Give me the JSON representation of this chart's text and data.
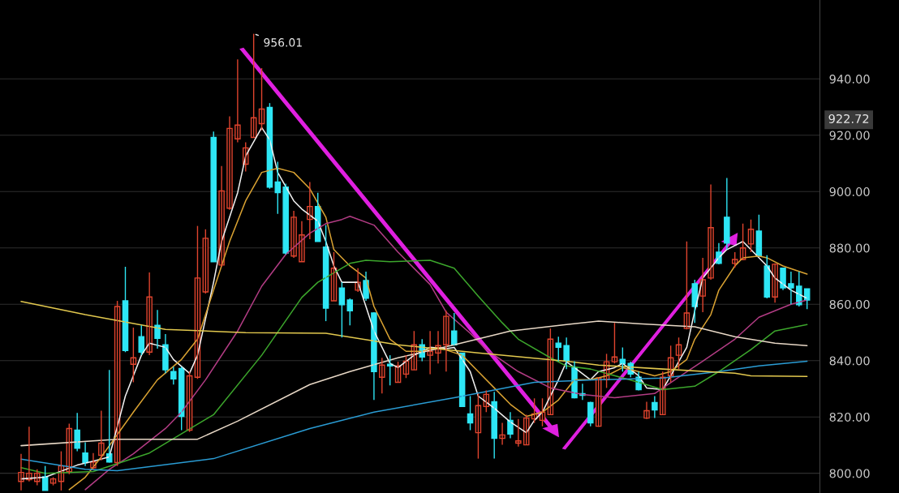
{
  "chart_data": {
    "type": "candlestick",
    "categories": [
      null,
      null,
      null,
      null,
      null,
      null,
      null,
      null,
      null,
      null,
      null,
      null,
      null,
      null,
      null,
      null,
      null,
      null,
      null,
      null,
      null,
      null,
      null,
      null,
      null,
      null,
      null,
      null,
      null,
      null,
      null,
      null,
      null,
      null,
      null,
      null,
      null,
      null,
      null,
      null,
      null,
      null,
      null,
      null,
      null,
      null,
      null,
      null,
      null,
      null,
      null,
      null,
      null,
      null,
      null,
      null,
      null,
      null,
      null,
      null,
      null,
      null,
      null,
      null,
      null,
      null,
      null,
      null,
      null,
      null,
      null,
      null,
      null,
      null,
      null,
      null,
      null,
      null,
      null,
      null,
      null,
      null,
      null,
      null,
      null,
      null,
      null,
      null,
      null,
      null,
      null,
      null,
      null,
      null,
      null,
      null,
      null,
      null,
      null
    ],
    "ohlc": [
      [
        797.1,
        806.9,
        793.9,
        800.3
      ],
      [
        797.7,
        816.5,
        797.1,
        800.0
      ],
      [
        797.1,
        801.4,
        795.7,
        800.0
      ],
      [
        798.8,
        802.6,
        793.9,
        793.9
      ],
      [
        796.5,
        798.6,
        795.7,
        798.0
      ],
      [
        797.1,
        807.8,
        793.9,
        802.6
      ],
      [
        800.6,
        817.6,
        799.7,
        815.9
      ],
      [
        815.3,
        821.4,
        807.8,
        808.9
      ],
      [
        807.2,
        811.0,
        802.6,
        803.8
      ],
      [
        802.0,
        807.2,
        801.4,
        804.0
      ],
      [
        806.4,
        822.2,
        804.6,
        810.7
      ],
      [
        806.9,
        836.7,
        803.8,
        804.0
      ],
      [
        803.8,
        861.2,
        802.6,
        859.2
      ],
      [
        861.2,
        873.3,
        843.0,
        843.6
      ],
      [
        838.7,
        851.7,
        832.3,
        841.0
      ],
      [
        848.5,
        852.5,
        841.9,
        843.0
      ],
      [
        843.0,
        871.3,
        841.9,
        862.6
      ],
      [
        852.5,
        858.0,
        844.2,
        847.9
      ],
      [
        845.6,
        849.4,
        835.5,
        836.7
      ],
      [
        836.1,
        837.8,
        831.5,
        833.5
      ],
      [
        837.2,
        837.8,
        815.3,
        820.2
      ],
      [
        815.3,
        836.1,
        814.7,
        834.6
      ],
      [
        834.1,
        887.8,
        833.5,
        869.3
      ],
      [
        864.4,
        886.6,
        863.8,
        883.4
      ],
      [
        919.2,
        921.3,
        875.1,
        875.1
      ],
      [
        873.9,
        909.1,
        873.3,
        900.2
      ],
      [
        894.1,
        926.7,
        893.5,
        922.4
      ],
      [
        918.7,
        946.9,
        917.5,
        923.6
      ],
      [
        909.7,
        917.5,
        907.1,
        915.5
      ],
      [
        919.2,
        956.01,
        919.2,
        926.2
      ],
      [
        924.1,
        943.8,
        921.8,
        929.3
      ],
      [
        929.9,
        931.4,
        901.0,
        901.6
      ],
      [
        903.4,
        910.6,
        892.1,
        899.6
      ],
      [
        901.6,
        902.8,
        877.7,
        878.2
      ],
      [
        877.1,
        893.2,
        876.5,
        890.9
      ],
      [
        875.1,
        889.5,
        875.1,
        884.6
      ],
      [
        890.1,
        903.4,
        883.1,
        894.7
      ],
      [
        894.7,
        899.6,
        882.3,
        882.3
      ],
      [
        880.3,
        888.1,
        854.0,
        858.6
      ],
      [
        861.2,
        878.5,
        861.2,
        872.8
      ],
      [
        865.8,
        867.8,
        848.2,
        859.8
      ],
      [
        861.5,
        862.1,
        852.5,
        857.7
      ],
      [
        865.0,
        872.8,
        864.4,
        867.8
      ],
      [
        868.4,
        871.6,
        861.2,
        862.1
      ],
      [
        856.9,
        857.2,
        826.0,
        836.1
      ],
      [
        834.1,
        841.0,
        828.3,
        838.4
      ],
      [
        838.7,
        841.9,
        831.2,
        838.1
      ],
      [
        832.3,
        839.6,
        832.3,
        838.1
      ],
      [
        835.2,
        841.9,
        833.8,
        839.8
      ],
      [
        836.7,
        850.5,
        836.7,
        845.6
      ],
      [
        845.6,
        847.6,
        839.8,
        841.3
      ],
      [
        841.9,
        850.5,
        835.2,
        843.3
      ],
      [
        842.7,
        850.5,
        839.0,
        845.3
      ],
      [
        845.6,
        857.7,
        836.1,
        855.7
      ],
      [
        850.5,
        856.9,
        845.3,
        845.6
      ],
      [
        842.7,
        842.7,
        823.7,
        823.7
      ],
      [
        821.1,
        827.4,
        815.3,
        817.9
      ],
      [
        814.4,
        828.3,
        805.2,
        824.0
      ],
      [
        823.7,
        829.4,
        821.7,
        828.0
      ],
      [
        825.4,
        828.9,
        805.2,
        812.4
      ],
      [
        812.4,
        817.9,
        810.1,
        813.6
      ],
      [
        818.8,
        821.7,
        812.4,
        813.9
      ],
      [
        810.7,
        819.3,
        809.5,
        811.5
      ],
      [
        810.1,
        820.8,
        810.1,
        819.6
      ],
      [
        819.3,
        826.6,
        817.9,
        821.1
      ],
      [
        818.8,
        826.6,
        816.7,
        821.7
      ],
      [
        820.8,
        851.4,
        820.8,
        847.6
      ],
      [
        846.2,
        848.5,
        839.8,
        844.7
      ],
      [
        845.3,
        848.2,
        837.0,
        839.8
      ],
      [
        837.5,
        839.8,
        826.6,
        826.8
      ],
      [
        828.3,
        831.8,
        826.0,
        827.7
      ],
      [
        825.1,
        825.4,
        816.7,
        817.9
      ],
      [
        816.7,
        834.1,
        816.5,
        833.8
      ],
      [
        833.2,
        842.4,
        830.3,
        839.6
      ],
      [
        839.6,
        853.4,
        839.0,
        841.3
      ],
      [
        840.4,
        844.7,
        836.1,
        839.0
      ],
      [
        839.0,
        839.6,
        834.1,
        835.2
      ],
      [
        834.1,
        836.1,
        829.4,
        829.7
      ],
      [
        819.6,
        825.4,
        819.3,
        822.2
      ],
      [
        825.1,
        827.4,
        819.6,
        822.5
      ],
      [
        820.8,
        836.1,
        820.8,
        834.1
      ],
      [
        834.6,
        845.3,
        832.3,
        841.0
      ],
      [
        841.9,
        848.2,
        837.0,
        845.6
      ],
      [
        851.4,
        882.3,
        851.1,
        856.9
      ],
      [
        867.3,
        868.7,
        853.4,
        859.2
      ],
      [
        862.9,
        876.5,
        857.2,
        868.7
      ],
      [
        869.3,
        902.5,
        868.7,
        887.2
      ],
      [
        878.5,
        881.7,
        874.2,
        874.5
      ],
      [
        890.9,
        904.8,
        879.4,
        881.7
      ],
      [
        874.5,
        878.5,
        873.0,
        875.9
      ],
      [
        875.9,
        888.6,
        875.6,
        880.0
      ],
      [
        881.4,
        890.1,
        878.5,
        886.6
      ],
      [
        886.0,
        891.8,
        877.1,
        877.1
      ],
      [
        873.6,
        877.4,
        862.1,
        862.6
      ],
      [
        862.6,
        874.5,
        860.6,
        874.2
      ],
      [
        872.8,
        872.8,
        865.0,
        865.8
      ],
      [
        867.3,
        871.6,
        860.0,
        865.8
      ],
      [
        866.4,
        871.6,
        859.2,
        859.8
      ],
      [
        865.5,
        865.5,
        858.3,
        861.5
      ]
    ],
    "colors": [
      "#e0442e",
      "#e0442e",
      "#e0442e",
      "#2ee6f5",
      "#e0442e",
      "#e0442e",
      "#e0442e",
      "#2ee6f5",
      "#2ee6f5",
      "#e0442e",
      "#e0442e",
      "#2ee6f5",
      "#e0442e",
      "#2ee6f5",
      "#e0442e",
      "#2ee6f5",
      "#e0442e",
      "#2ee6f5",
      "#2ee6f5",
      "#2ee6f5",
      "#2ee6f5",
      "#e0442e",
      "#e0442e",
      "#e0442e",
      "#2ee6f5",
      "#e0442e",
      "#e0442e",
      "#e0442e",
      "#e0442e",
      "#e0442e",
      "#e0442e",
      "#2ee6f5",
      "#2ee6f5",
      "#2ee6f5",
      "#e0442e",
      "#e0442e",
      "#e0442e",
      "#2ee6f5",
      "#2ee6f5",
      "#e0442e",
      "#2ee6f5",
      "#2ee6f5",
      "#e0442e",
      "#2ee6f5",
      "#2ee6f5",
      "#e0442e",
      "#2ee6f5",
      "#e0442e",
      "#e0442e",
      "#e0442e",
      "#2ee6f5",
      "#e0442e",
      "#e0442e",
      "#e0442e",
      "#2ee6f5",
      "#2ee6f5",
      "#2ee6f5",
      "#e0442e",
      "#e0442e",
      "#2ee6f5",
      "#e0442e",
      "#2ee6f5",
      "#e0442e",
      "#e0442e",
      "#e0442e",
      "#e0442e",
      "#e0442e",
      "#2ee6f5",
      "#2ee6f5",
      "#2ee6f5",
      "#2ee6f5",
      "#2ee6f5",
      "#e0442e",
      "#e0442e",
      "#e0442e",
      "#2ee6f5",
      "#2ee6f5",
      "#2ee6f5",
      "#e0442e",
      "#2ee6f5",
      "#e0442e",
      "#e0442e",
      "#e0442e",
      "#e0442e",
      "#2ee6f5",
      "#e0442e",
      "#e0442e",
      "#2ee6f5",
      "#2ee6f5",
      "#e0442e",
      "#e0442e",
      "#e0442e",
      "#2ee6f5",
      "#2ee6f5",
      "#e0442e",
      "#2ee6f5",
      "#2ee6f5",
      "#2ee6f5",
      "#2ee6f5"
    ],
    "series": [
      {
        "type": "line",
        "color": "#f0f0f0",
        "values": [
          798.0,
          null,
          null,
          798.6,
          null,
          null,
          null,
          802.9,
          null,
          804.3,
          null,
          805.8,
          null,
          827.4,
          null,
          841.9,
          846.2,
          null,
          844.7,
          840.4,
          null,
          835.5,
          841.9,
          null,
          867.8,
          882.3,
          null,
          899.6,
          912.6,
          null,
          922.7,
          918.4,
          906.8,
          null,
          896.7,
          893.8,
          null,
          889.5,
          882.3,
          873.6,
          867.8,
          null,
          867.8,
          859.2,
          850.5,
          null,
          839.0,
          837.5,
          null,
          841.9,
          null,
          844.7,
          null,
          844.2,
          844.7,
          null,
          836.1,
          827.4,
          null,
          823.1,
          null,
          818.2,
          null,
          814.4,
          818.8,
          821.7,
          null,
          833.2,
          839.6,
          837.5,
          null,
          833.2,
          836.1,
          null,
          837.5,
          839.0,
          null,
          834.6,
          830.3,
          null,
          829.7,
          834.6,
          null,
          844.7,
          857.7,
          869.3,
          null,
          876.5,
          879.4,
          null,
          882.3,
          879.4,
          null,
          873.6,
          869.3,
          null,
          865.0,
          null,
          862.1
        ]
      },
      {
        "type": "line",
        "color": "#d9a232",
        "values": [
          null,
          null,
          null,
          null,
          null,
          null,
          794.2,
          null,
          798.6,
          null,
          805.8,
          null,
          null,
          null,
          821.7,
          null,
          null,
          833.2,
          null,
          null,
          840.4,
          null,
          847.6,
          null,
          865.0,
          null,
          882.3,
          null,
          896.7,
          null,
          906.8,
          null,
          908.3,
          null,
          906.8,
          null,
          901.0,
          null,
          890.9,
          879.4,
          null,
          873.6,
          null,
          869.3,
          859.2,
          null,
          847.6,
          null,
          843.3,
          null,
          843.3,
          null,
          844.7,
          null,
          null,
          841.9,
          null,
          836.1,
          null,
          830.3,
          null,
          824.5,
          null,
          820.2,
          null,
          821.7,
          null,
          826.0,
          null,
          833.2,
          null,
          833.2,
          null,
          834.6,
          null,
          837.5,
          null,
          836.1,
          null,
          834.6,
          null,
          836.1,
          null,
          840.4,
          847.6,
          null,
          856.3,
          865.0,
          null,
          873.6,
          876.5,
          null,
          877.1,
          876.5,
          null,
          873.6,
          null,
          null,
          870.7
        ]
      },
      {
        "type": "line",
        "color": "#b23c84",
        "values": [
          null,
          null,
          null,
          null,
          null,
          null,
          null,
          null,
          794.2,
          null,
          null,
          801.4,
          null,
          null,
          806.9,
          null,
          null,
          null,
          815.9,
          null,
          821.7,
          null,
          null,
          833.2,
          null,
          null,
          null,
          850.5,
          null,
          null,
          866.4,
          null,
          null,
          877.7,
          null,
          null,
          885.2,
          null,
          888.6,
          null,
          890.1,
          891.2,
          null,
          null,
          888.1,
          null,
          null,
          878.5,
          null,
          null,
          null,
          867.0,
          null,
          857.2,
          null,
          null,
          849.7,
          null,
          843.9,
          null,
          null,
          null,
          836.1,
          null,
          null,
          null,
          830.3,
          null,
          null,
          null,
          828.0,
          null,
          null,
          null,
          826.8,
          null,
          null,
          null,
          null,
          828.3,
          null,
          null,
          834.1,
          null,
          null,
          839.8,
          null,
          null,
          null,
          847.6,
          null,
          null,
          855.4,
          null,
          null,
          null,
          860.0,
          null,
          861.5
        ]
      },
      {
        "type": "line",
        "color": "#3ca62c",
        "values": [
          802.0,
          null,
          null,
          800.0,
          null,
          null,
          null,
          null,
          null,
          800.6,
          null,
          null,
          null,
          null,
          null,
          null,
          807.2,
          null,
          null,
          null,
          null,
          null,
          null,
          null,
          820.8,
          null,
          null,
          null,
          null,
          null,
          841.9,
          null,
          null,
          null,
          null,
          862.4,
          null,
          867.8,
          null,
          null,
          null,
          874.5,
          null,
          875.6,
          null,
          null,
          875.1,
          null,
          null,
          null,
          null,
          875.6,
          null,
          null,
          872.8,
          null,
          null,
          862.9,
          null,
          null,
          853.4,
          null,
          847.6,
          null,
          null,
          null,
          841.0,
          null,
          838.1,
          null,
          null,
          837.0,
          null,
          null,
          null,
          null,
          null,
          832.3,
          null,
          null,
          829.7,
          null,
          null,
          null,
          830.9,
          null,
          null,
          836.1,
          null,
          null,
          null,
          843.9,
          null,
          null,
          850.5,
          null,
          null,
          null,
          852.8
        ]
      },
      {
        "type": "line",
        "color": "#e8d8c6",
        "values": [
          809.8,
          null,
          null,
          null,
          null,
          null,
          null,
          null,
          null,
          null,
          null,
          null,
          812.1,
          null,
          null,
          null,
          null,
          null,
          null,
          null,
          null,
          null,
          812.1,
          null,
          null,
          null,
          null,
          818.5,
          null,
          null,
          null,
          null,
          null,
          null,
          null,
          null,
          831.5,
          null,
          null,
          null,
          null,
          836.1,
          null,
          null,
          null,
          null,
          null,
          841.0,
          null,
          null,
          null,
          null,
          null,
          null,
          845.6,
          null,
          null,
          null,
          null,
          null,
          null,
          850.5,
          null,
          null,
          null,
          null,
          null,
          null,
          852.8,
          null,
          null,
          null,
          854.0,
          null,
          null,
          null,
          null,
          853.1,
          null,
          null,
          null,
          null,
          null,
          null,
          852.0,
          null,
          null,
          null,
          null,
          848.5,
          null,
          null,
          null,
          null,
          846.2,
          null,
          null,
          null,
          845.3
        ]
      },
      {
        "type": "line",
        "color": "#2a9cd4",
        "values": [
          805.0,
          null,
          null,
          null,
          null,
          null,
          null,
          null,
          801.4,
          null,
          null,
          null,
          800.9,
          null,
          null,
          null,
          null,
          null,
          null,
          null,
          null,
          null,
          null,
          null,
          805.2,
          null,
          null,
          null,
          null,
          null,
          null,
          null,
          null,
          null,
          null,
          null,
          815.9,
          null,
          null,
          null,
          null,
          null,
          null,
          null,
          821.7,
          null,
          null,
          null,
          null,
          null,
          null,
          null,
          null,
          null,
          826.8,
          null,
          null,
          null,
          null,
          null,
          null,
          null,
          null,
          null,
          832.3,
          null,
          null,
          null,
          null,
          null,
          null,
          null,
          833.2,
          null,
          null,
          null,
          null,
          null,
          null,
          null,
          833.8,
          null,
          null,
          null,
          null,
          null,
          null,
          836.1,
          null,
          null,
          null,
          null,
          838.1,
          null,
          null,
          null,
          null,
          null,
          839.8
        ]
      },
      {
        "type": "line",
        "color": "#e2c84e",
        "values": [
          861.0,
          null,
          null,
          null,
          null,
          null,
          null,
          null,
          856.3,
          null,
          null,
          null,
          null,
          null,
          null,
          null,
          null,
          null,
          851.1,
          null,
          null,
          null,
          null,
          null,
          null,
          null,
          null,
          null,
          849.9,
          null,
          null,
          null,
          null,
          null,
          null,
          null,
          null,
          null,
          849.7,
          null,
          null,
          null,
          null,
          null,
          null,
          null,
          null,
          845.6,
          null,
          null,
          null,
          null,
          null,
          null,
          null,
          null,
          null,
          842.7,
          null,
          null,
          null,
          null,
          null,
          null,
          null,
          null,
          null,
          null,
          839.8,
          null,
          null,
          null,
          838.4,
          null,
          null,
          null,
          null,
          null,
          null,
          null,
          837.0,
          null,
          null,
          null,
          null,
          null,
          null,
          null,
          null,
          835.5,
          null,
          834.6,
          null,
          null,
          null,
          null,
          null,
          null,
          834.4
        ]
      }
    ],
    "ylim": [
      793,
      968
    ],
    "yticks": [
      {
        "value": 800,
        "label": "800.00"
      },
      {
        "value": 820,
        "label": "820.00"
      },
      {
        "value": 840,
        "label": "840.00"
      },
      {
        "value": 860,
        "label": "860.00"
      },
      {
        "value": 880,
        "label": "880.00"
      },
      {
        "value": 900,
        "label": "900.00"
      },
      {
        "value": 920,
        "label": "920.00"
      },
      {
        "value": 940,
        "label": "940.00"
      }
    ],
    "grid": "y",
    "tick_labels": "y",
    "annotations": [
      "956.01",
      "922.72"
    ]
  }
}
